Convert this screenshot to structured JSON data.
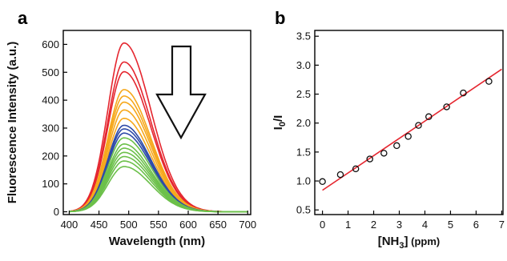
{
  "panels": {
    "a": "a",
    "b": "b"
  },
  "chart_data": [
    {
      "type": "line",
      "panel": "a",
      "xlabel": "Wavelength (nm)",
      "ylabel": "Fluorescence Intensity (a.u.)",
      "xlim": [
        390,
        705
      ],
      "ylim": [
        -10,
        650
      ],
      "xticks": [
        400,
        450,
        500,
        550,
        600,
        650,
        700
      ],
      "yticks": [
        0,
        100,
        200,
        300,
        400,
        500,
        600
      ],
      "peak_wavelength": 492,
      "peak_values": [
        605,
        537,
        502,
        438,
        415,
        393,
        365,
        335,
        310,
        297,
        282,
        265,
        243,
        228,
        213,
        198,
        182,
        162
      ],
      "curve_colors": [
        "#e5262f",
        "#e5262f",
        "#e5262f",
        "#f6a81c",
        "#f6a81c",
        "#f6a81c",
        "#f6a81c",
        "#f6a81c",
        "#2e4aa8",
        "#2e4aa8",
        "#2e4aa8",
        "#6cc04a",
        "#6cc04a",
        "#6cc04a",
        "#6cc04a",
        "#6cc04a",
        "#6cc04a",
        "#6cc04a"
      ],
      "annotation": "downward-arrow"
    },
    {
      "type": "scatter",
      "panel": "b",
      "xlabel_main": "[NH",
      "xlabel_sub": "3",
      "xlabel_close": "]",
      "xlabel_unit": " (ppm)",
      "ylabel_main": "I",
      "ylabel_sub": "0",
      "ylabel_rest": "/I",
      "xlim": [
        -0.3,
        7.05
      ],
      "ylim": [
        0.42,
        3.6
      ],
      "xticks": [
        0,
        1,
        2,
        3,
        4,
        5,
        6,
        7
      ],
      "yticks": [
        0.5,
        1.0,
        1.5,
        2.0,
        2.5,
        3.0,
        3.5
      ],
      "ytick_labels": [
        "0.5",
        "1.0",
        "1.5",
        "2.0",
        "2.5",
        "3.0",
        "3.5"
      ],
      "points": [
        {
          "x": 0,
          "y": 0.99
        },
        {
          "x": 0.7,
          "y": 1.11
        },
        {
          "x": 1.3,
          "y": 1.21
        },
        {
          "x": 1.85,
          "y": 1.38
        },
        {
          "x": 2.4,
          "y": 1.48
        },
        {
          "x": 2.9,
          "y": 1.61
        },
        {
          "x": 3.35,
          "y": 1.77
        },
        {
          "x": 3.75,
          "y": 1.96
        },
        {
          "x": 4.15,
          "y": 2.11
        },
        {
          "x": 4.85,
          "y": 2.28
        },
        {
          "x": 5.5,
          "y": 2.52
        },
        {
          "x": 6.5,
          "y": 2.72
        }
      ],
      "fit_line": {
        "x": [
          0,
          7
        ],
        "y": [
          0.84,
          2.93
        ],
        "color": "#e5262f"
      }
    }
  ]
}
